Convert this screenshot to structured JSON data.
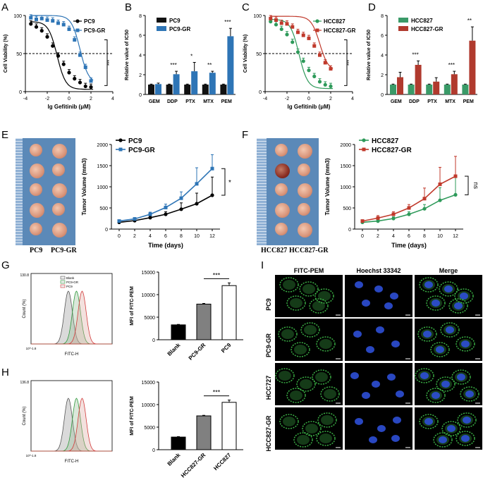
{
  "panel_labels": {
    "A": "A",
    "B": "B",
    "C": "C",
    "D": "D",
    "E": "E",
    "F": "F",
    "G": "G",
    "H": "H",
    "I": "I"
  },
  "chart_data": [
    {
      "id": "A",
      "type": "line",
      "xlabel": "lg Gefitinib (μM)",
      "ylabel": "Cell Viability (%)",
      "xlim": [
        -4,
        4
      ],
      "ylim": [
        0,
        100
      ],
      "xticks": [
        -4,
        -2,
        0,
        2,
        4
      ],
      "yticks": [
        0,
        50,
        100
      ],
      "reference_line": 50,
      "significance": "***",
      "series": [
        {
          "name": "PC9",
          "color": "#000000",
          "x": [
            -3.5,
            -3,
            -2.5,
            -2,
            -1.5,
            -1,
            -0.5,
            0,
            0.5,
            1,
            1.5,
            2
          ],
          "y": [
            89,
            85,
            80,
            72,
            60,
            47,
            36,
            25,
            17,
            12,
            7,
            6
          ],
          "fit_ic50": -1.1
        },
        {
          "name": "PC9-GR",
          "color": "#2e75b6",
          "x": [
            -3.5,
            -3,
            -2.5,
            -2,
            -1.5,
            -1,
            -0.5,
            0,
            0.5,
            1,
            1.5,
            2
          ],
          "y": [
            97,
            95,
            96,
            94,
            93,
            90,
            88,
            82,
            68,
            48,
            32,
            14
          ],
          "fit_ic50": 1.0
        }
      ]
    },
    {
      "id": "B",
      "type": "bar",
      "ylabel": "Relative value of IC50",
      "ylim": [
        0,
        8
      ],
      "yticks": [
        0,
        2,
        4,
        6,
        8
      ],
      "categories": [
        "GEM",
        "DDP",
        "PTX",
        "MTX",
        "PEM"
      ],
      "significance": [
        "",
        "***",
        "*",
        "**",
        "***"
      ],
      "series": [
        {
          "name": "PC9",
          "color": "#111111",
          "values": [
            1,
            1,
            1,
            1,
            1
          ],
          "err": [
            0.05,
            0.05,
            0.05,
            0.05,
            0.05
          ]
        },
        {
          "name": "PC9-GR",
          "color": "#2e75b6",
          "values": [
            1.05,
            2.05,
            2.35,
            2.2,
            5.9
          ],
          "err": [
            0.1,
            0.3,
            0.9,
            0.15,
            0.8
          ]
        }
      ]
    },
    {
      "id": "C",
      "type": "line",
      "xlabel": "lg Gefitinib (μM)",
      "ylabel": "Cell Viability (%)",
      "xlim": [
        -4,
        4
      ],
      "ylim": [
        0,
        100
      ],
      "xticks": [
        -4,
        -2,
        0,
        2,
        4
      ],
      "yticks": [
        0,
        50,
        100
      ],
      "reference_line": 50,
      "significance": "***",
      "series": [
        {
          "name": "HCC827",
          "color": "#2e9a5a",
          "x": [
            -3.5,
            -3,
            -2.5,
            -2,
            -1.5,
            -1,
            -0.5,
            0,
            0.5,
            1,
            1.5,
            2
          ],
          "y": [
            92,
            88,
            82,
            75,
            65,
            52,
            40,
            28,
            20,
            13,
            9,
            7
          ],
          "fit_ic50": -0.9
        },
        {
          "name": "HCC827-GR",
          "color": "#c0392b",
          "x": [
            -3.5,
            -3,
            -2.5,
            -2,
            -1.5,
            -1,
            -0.5,
            0,
            0.5,
            1,
            1.5,
            2
          ],
          "y": [
            96,
            94,
            90,
            89,
            85,
            78,
            74,
            70,
            60,
            48,
            38,
            30
          ],
          "fit_ic50": 1.0
        }
      ]
    },
    {
      "id": "D",
      "type": "bar",
      "ylabel": "Relative value of IC50",
      "ylim": [
        0,
        8
      ],
      "yticks": [
        0,
        2,
        4,
        6,
        8
      ],
      "categories": [
        "GEM",
        "DDP",
        "PTX",
        "MTX",
        "PEM"
      ],
      "significance": [
        "",
        "***",
        "",
        "***",
        "**"
      ],
      "series": [
        {
          "name": "HCC827",
          "color": "#3a9a68",
          "values": [
            1,
            1,
            1,
            1,
            1
          ],
          "err": [
            0.05,
            0.05,
            0.05,
            0.05,
            0.05
          ]
        },
        {
          "name": "HCC827-GR",
          "color": "#b03a2e",
          "values": [
            1.75,
            3.0,
            1.3,
            2.05,
            5.45
          ],
          "err": [
            0.5,
            0.4,
            0.4,
            0.3,
            1.4
          ]
        }
      ]
    },
    {
      "id": "E",
      "type": "line",
      "xlabel": "Time (days)",
      "ylabel": "Tumor Volume (mm3)",
      "xlim": [
        0,
        12
      ],
      "ylim": [
        0,
        2000
      ],
      "xticks": [
        0,
        2,
        4,
        6,
        8,
        10,
        12
      ],
      "yticks": [
        0,
        500,
        1000,
        1500,
        2000
      ],
      "significance": "*",
      "series": [
        {
          "name": "PC9",
          "color": "#000000",
          "x": [
            0,
            2,
            4,
            6,
            8,
            10,
            12
          ],
          "y": [
            160,
            200,
            270,
            350,
            470,
            600,
            800
          ],
          "err": [
            20,
            30,
            40,
            60,
            150,
            250,
            430
          ]
        },
        {
          "name": "PC9-GR",
          "color": "#2e75b6",
          "x": [
            0,
            2,
            4,
            6,
            8,
            10,
            12
          ],
          "y": [
            190,
            240,
            350,
            510,
            730,
            1070,
            1430
          ],
          "err": [
            20,
            30,
            50,
            80,
            150,
            380,
            330
          ]
        }
      ]
    },
    {
      "id": "F",
      "type": "line",
      "xlabel": "Time (days)",
      "ylabel": "Tumor Volume (mm3)",
      "xlim": [
        0,
        12
      ],
      "ylim": [
        0,
        2000
      ],
      "xticks": [
        0,
        2,
        4,
        6,
        8,
        10,
        12
      ],
      "yticks": [
        0,
        500,
        1000,
        1500,
        2000
      ],
      "significance": "ns",
      "series": [
        {
          "name": "HCC827",
          "color": "#2e9a5a",
          "x": [
            0,
            2,
            4,
            6,
            8,
            10,
            12
          ],
          "y": [
            160,
            190,
            250,
            350,
            480,
            680,
            810
          ],
          "err": [
            20,
            30,
            40,
            60,
            100,
            300,
            420
          ]
        },
        {
          "name": "HCC827-GR",
          "color": "#c0392b",
          "x": [
            0,
            2,
            4,
            6,
            8,
            10,
            12
          ],
          "y": [
            190,
            260,
            350,
            500,
            720,
            1060,
            1250
          ],
          "err": [
            20,
            60,
            60,
            80,
            250,
            400,
            470
          ]
        }
      ]
    },
    {
      "id": "G-bar",
      "type": "bar",
      "ylabel": "MFI of FITC-PEM",
      "ylim": [
        0,
        15000
      ],
      "yticks": [
        0,
        5000,
        10000,
        15000
      ],
      "categories": [
        "Blank",
        "PC9-GR",
        "PC9"
      ],
      "colors": [
        "#000000",
        "#808080",
        "#ffffff"
      ],
      "values": [
        3300,
        7900,
        12000
      ],
      "err": [
        100,
        150,
        600
      ],
      "significance": "***"
    },
    {
      "id": "H-bar",
      "type": "bar",
      "ylabel": "MFI of FITC-PEM",
      "ylim": [
        0,
        15000
      ],
      "yticks": [
        0,
        5000,
        10000,
        15000
      ],
      "categories": [
        "Blank",
        "HCC827-GR",
        "HCC827"
      ],
      "colors": [
        "#000000",
        "#808080",
        "#ffffff"
      ],
      "values": [
        2800,
        7500,
        10500
      ],
      "err": [
        100,
        120,
        500
      ],
      "significance": "***"
    }
  ],
  "flow_G": {
    "ymax_label": "130.8",
    "y_label": "Count (%)",
    "x_label": "FITC-H",
    "x_left": "10^-1.8",
    "legend": [
      "Blank",
      "PC9-GR",
      "PC9"
    ]
  },
  "flow_H": {
    "ymax_label": "136.8",
    "y_label": "Count (%)",
    "x_label": "FITC-H",
    "x_left": "10^-1.8"
  },
  "photo_E": {
    "labels": [
      "PC9",
      "PC9-GR"
    ]
  },
  "photo_F": {
    "labels": [
      "HCC827",
      "HCC827-GR"
    ]
  },
  "microscopy": {
    "columns": [
      "FITC-PEM",
      "Hoechst 33342",
      "Merge"
    ],
    "rows": [
      "PC9",
      "PC9-GR",
      "HCC727",
      "HCC827-GR"
    ]
  }
}
